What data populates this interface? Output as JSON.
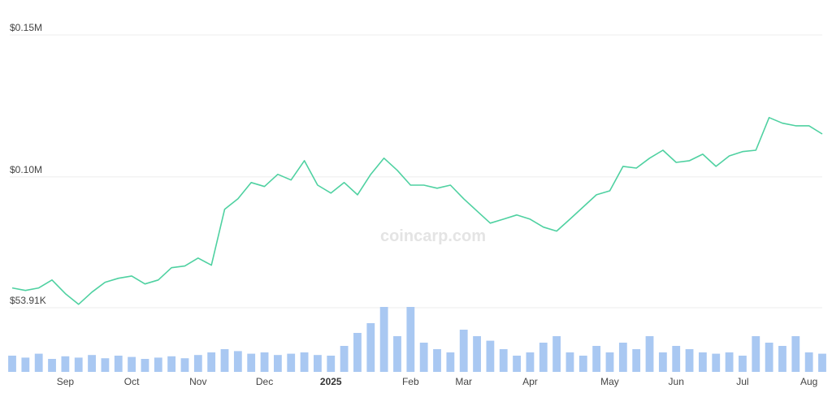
{
  "chart_data": {
    "type": "line",
    "watermark": "coincarp.com",
    "categories": [
      null,
      null,
      null,
      null,
      "Sep",
      null,
      null,
      null,
      null,
      "Oct",
      null,
      null,
      null,
      null,
      "Nov",
      null,
      null,
      null,
      null,
      "Dec",
      null,
      null,
      null,
      null,
      "2025",
      null,
      null,
      null,
      null,
      null,
      "Feb",
      null,
      null,
      null,
      "Mar",
      null,
      null,
      null,
      null,
      "Apr",
      null,
      null,
      null,
      null,
      null,
      "May",
      null,
      null,
      null,
      null,
      "Jun",
      null,
      null,
      null,
      null,
      "Jul",
      null,
      null,
      null,
      null,
      "Aug",
      null
    ],
    "values": [
      60900,
      60000,
      60900,
      63700,
      58900,
      55100,
      59400,
      62900,
      64300,
      65100,
      62300,
      63700,
      68000,
      68600,
      71400,
      68900,
      88600,
      92300,
      98000,
      96600,
      100900,
      98900,
      105700,
      97100,
      94300,
      98000,
      93700,
      100900,
      106600,
      102300,
      97100,
      97100,
      96000,
      97100,
      92300,
      88000,
      83700,
      85100,
      86600,
      85100,
      82300,
      80900,
      85100,
      89400,
      93700,
      95100,
      103700,
      103100,
      106600,
      109400,
      105100,
      105700,
      108000,
      103700,
      107400,
      108900,
      109400,
      120900,
      118900,
      118000,
      118000,
      115100
    ],
    "color": "#4fd1a1",
    "volume_values": [
      25,
      22,
      28,
      20,
      24,
      22,
      26,
      21,
      25,
      23,
      20,
      22,
      24,
      21,
      26,
      30,
      35,
      32,
      28,
      30,
      26,
      28,
      30,
      26,
      25,
      40,
      60,
      75,
      100,
      55,
      100,
      45,
      35,
      30,
      65,
      55,
      48,
      35,
      25,
      30,
      45,
      55,
      30,
      25,
      40,
      30,
      45,
      35,
      55,
      30,
      40,
      35,
      30,
      28,
      30,
      25,
      55,
      45,
      40,
      55,
      30,
      28
    ],
    "volume_color": "#a9c8f2",
    "y2lim": [
      0,
      100
    ],
    "ylim": [
      53910,
      150000
    ],
    "yticks": [
      {
        "value": 53910,
        "label": "$53.91K"
      },
      {
        "value": 100000,
        "label": "$0.10M"
      },
      {
        "value": 150000,
        "label": "$0.15M"
      }
    ],
    "grid": true
  }
}
